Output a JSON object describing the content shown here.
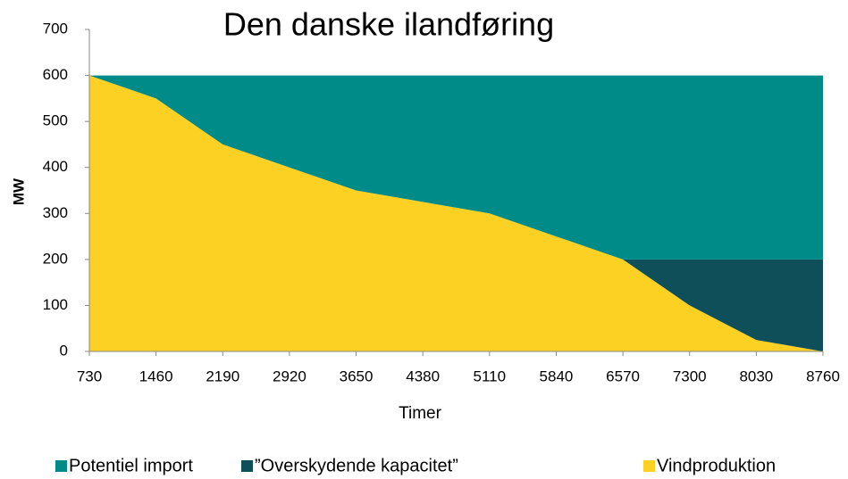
{
  "chart_data": {
    "type": "stacked_area",
    "title": "Den danske ilandføring",
    "x_label": "Timer",
    "y_label": "MW",
    "x": [
      730,
      1460,
      2190,
      2920,
      3650,
      4380,
      5110,
      5840,
      6570,
      7300,
      8030,
      8760
    ],
    "series": [
      {
        "name": "Vindproduktion",
        "color": "#fcd123",
        "values": [
          600,
          550,
          450,
          400,
          350,
          325,
          300,
          250,
          200,
          100,
          25,
          0
        ]
      },
      {
        "name": "”Overskydende kapacitet”",
        "color": "#0e4f5a",
        "values": [
          0,
          0,
          0,
          0,
          0,
          0,
          0,
          0,
          0,
          100,
          175,
          200
        ]
      },
      {
        "name": "Potentiel import",
        "color": "#008a88",
        "values": [
          0,
          50,
          150,
          200,
          250,
          275,
          300,
          350,
          400,
          400,
          400,
          400
        ]
      }
    ],
    "legend_order": [
      2,
      1,
      0
    ],
    "xlim": [
      730,
      8760
    ],
    "xticks": [
      730,
      1460,
      2190,
      2920,
      3650,
      4380,
      5110,
      5840,
      6570,
      7300,
      8030,
      8760
    ],
    "ylim": [
      0,
      700
    ],
    "yticks": [
      0,
      100,
      200,
      300,
      400,
      500,
      600,
      700
    ],
    "grid": false
  }
}
